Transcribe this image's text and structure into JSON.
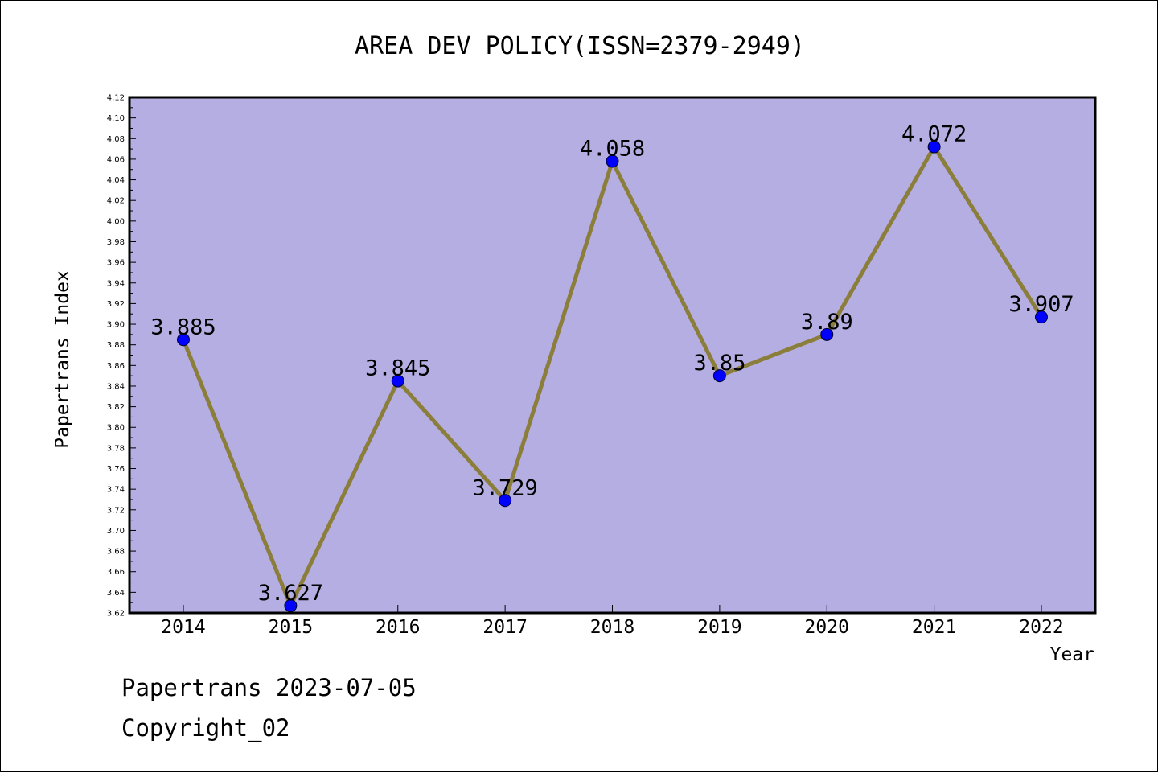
{
  "chart_data": {
    "type": "line",
    "title": "AREA DEV POLICY(ISSN=2379-2949)",
    "xlabel": "Year",
    "ylabel": "Papertrans Index",
    "categories": [
      "2014",
      "2015",
      "2016",
      "2017",
      "2018",
      "2019",
      "2020",
      "2021",
      "2022"
    ],
    "series": [
      {
        "values": [
          3.885,
          3.627,
          3.845,
          3.729,
          4.058,
          3.85,
          3.89,
          4.072,
          3.907
        ],
        "labels": [
          "3.885",
          "3.627",
          "3.845",
          "3.729",
          "4.058",
          "3.85",
          "3.89",
          "4.072",
          "3.907"
        ]
      }
    ],
    "ylim": [
      3.62,
      4.12
    ],
    "ytick_step": 0.02,
    "yticks": [
      "3.62",
      "3.64",
      "3.66",
      "3.68",
      "3.70",
      "3.72",
      "3.74",
      "3.76",
      "3.78",
      "3.80",
      "3.82",
      "3.84",
      "3.86",
      "3.88",
      "3.90",
      "3.92",
      "3.94",
      "3.96",
      "3.98",
      "4.00",
      "4.02",
      "4.04",
      "4.06",
      "4.08",
      "4.10",
      "4.12"
    ],
    "grid": false,
    "legend": "none",
    "colors": {
      "plot_background": "#b5aee2",
      "line": "#8b7d3a",
      "marker": "#0000ff",
      "axis": "#000000"
    }
  },
  "footer": {
    "line1": "Papertrans 2023-07-05",
    "line2": "Copyright_02"
  }
}
